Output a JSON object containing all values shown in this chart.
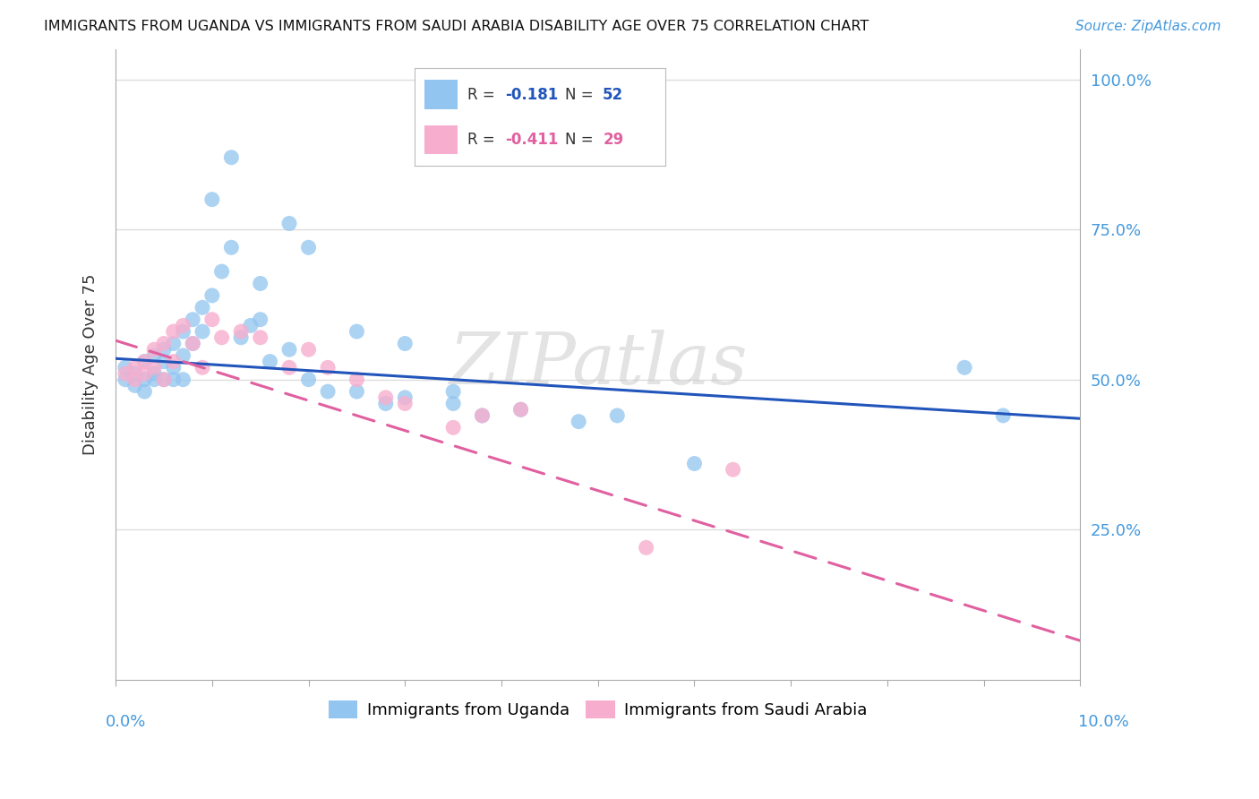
{
  "title": "IMMIGRANTS FROM UGANDA VS IMMIGRANTS FROM SAUDI ARABIA DISABILITY AGE OVER 75 CORRELATION CHART",
  "source": "Source: ZipAtlas.com",
  "ylabel": "Disability Age Over 75",
  "ylim": [
    0.0,
    1.05
  ],
  "xlim": [
    0.0,
    0.1
  ],
  "color_uganda": "#92C5F0",
  "color_saudi": "#F7AECE",
  "color_line_uganda": "#2255BB",
  "color_line_saudi": "#E060A0",
  "watermark": "ZIPatlas",
  "background_color": "#ffffff",
  "grid_color": "#dddddd",
  "uganda_x": [
    0.001,
    0.001,
    0.002,
    0.002,
    0.003,
    0.003,
    0.003,
    0.004,
    0.004,
    0.004,
    0.005,
    0.005,
    0.005,
    0.006,
    0.006,
    0.006,
    0.007,
    0.007,
    0.007,
    0.008,
    0.008,
    0.009,
    0.009,
    0.01,
    0.011,
    0.012,
    0.013,
    0.014,
    0.015,
    0.016,
    0.018,
    0.02,
    0.022,
    0.025,
    0.028,
    0.03,
    0.035,
    0.038,
    0.042,
    0.048,
    0.052,
    0.06,
    0.088,
    0.092,
    0.01,
    0.012,
    0.015,
    0.018,
    0.02,
    0.025,
    0.03,
    0.035
  ],
  "uganda_y": [
    0.5,
    0.52,
    0.51,
    0.49,
    0.53,
    0.5,
    0.48,
    0.54,
    0.51,
    0.5,
    0.55,
    0.53,
    0.5,
    0.56,
    0.52,
    0.5,
    0.58,
    0.54,
    0.5,
    0.6,
    0.56,
    0.62,
    0.58,
    0.64,
    0.68,
    0.72,
    0.57,
    0.59,
    0.6,
    0.53,
    0.55,
    0.5,
    0.48,
    0.48,
    0.46,
    0.47,
    0.46,
    0.44,
    0.45,
    0.43,
    0.44,
    0.36,
    0.52,
    0.44,
    0.8,
    0.87,
    0.66,
    0.76,
    0.72,
    0.58,
    0.56,
    0.48
  ],
  "saudi_x": [
    0.001,
    0.002,
    0.002,
    0.003,
    0.003,
    0.004,
    0.004,
    0.005,
    0.005,
    0.006,
    0.006,
    0.007,
    0.008,
    0.009,
    0.01,
    0.011,
    0.013,
    0.015,
    0.018,
    0.02,
    0.022,
    0.025,
    0.028,
    0.03,
    0.035,
    0.038,
    0.042,
    0.055,
    0.064
  ],
  "saudi_y": [
    0.51,
    0.52,
    0.5,
    0.53,
    0.51,
    0.55,
    0.52,
    0.56,
    0.5,
    0.58,
    0.53,
    0.59,
    0.56,
    0.52,
    0.6,
    0.57,
    0.58,
    0.57,
    0.52,
    0.55,
    0.52,
    0.5,
    0.47,
    0.46,
    0.42,
    0.44,
    0.45,
    0.22,
    0.35
  ],
  "line_uganda_x0": 0.0,
  "line_uganda_y0": 0.535,
  "line_uganda_x1": 0.1,
  "line_uganda_y1": 0.435,
  "line_saudi_x0": 0.0,
  "line_saudi_y0": 0.565,
  "line_saudi_x1": 0.1,
  "line_saudi_y1": 0.065
}
